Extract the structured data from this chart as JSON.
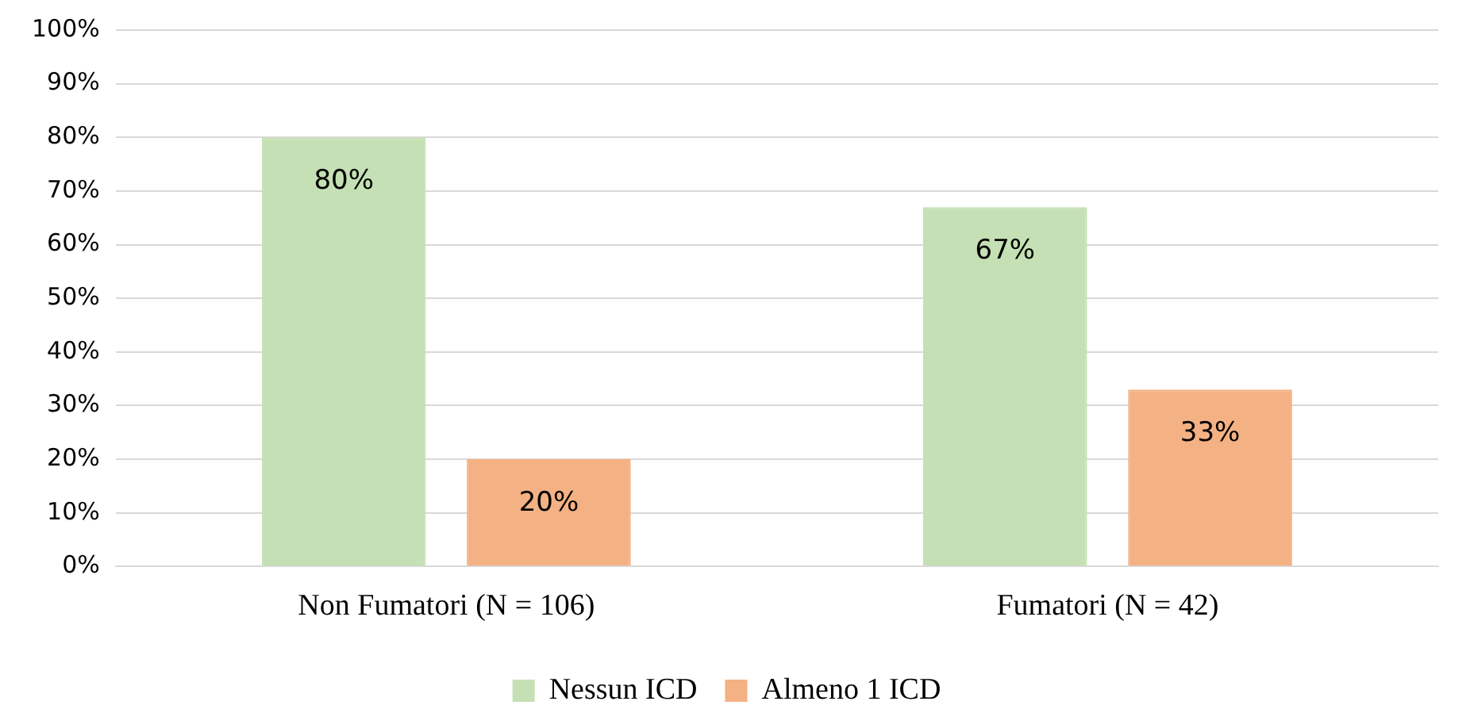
{
  "chart_data": {
    "type": "bar",
    "categories": [
      "Non Fumatori (N = 106)",
      "Fumatori (N = 42)"
    ],
    "series": [
      {
        "name": "Nessun ICD",
        "color": "#c5e0b4",
        "values": [
          80,
          67
        ],
        "value_labels": [
          "80%",
          "67%"
        ]
      },
      {
        "name": "Almeno 1 ICD",
        "color": "#f4b183",
        "values": [
          20,
          33
        ],
        "value_labels": [
          "20%",
          "33%"
        ]
      }
    ],
    "ylim": [
      0,
      100
    ],
    "yticks": [
      {
        "value": 0,
        "label": "0%"
      },
      {
        "value": 10,
        "label": "10%"
      },
      {
        "value": 20,
        "label": "20%"
      },
      {
        "value": 30,
        "label": "30%"
      },
      {
        "value": 40,
        "label": "40%"
      },
      {
        "value": 50,
        "label": "50%"
      },
      {
        "value": 60,
        "label": "60%"
      },
      {
        "value": 70,
        "label": "70%"
      },
      {
        "value": 80,
        "label": "80%"
      },
      {
        "value": 90,
        "label": "90%"
      },
      {
        "value": 100,
        "label": "100%"
      }
    ],
    "grid": "y",
    "legend": "bottom"
  }
}
